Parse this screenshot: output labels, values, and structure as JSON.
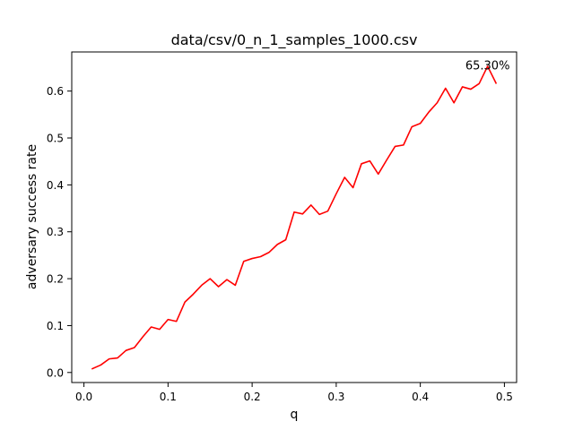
{
  "chart_data": {
    "type": "line",
    "title": "data/csv/0_n_1_samples_1000.csv",
    "xlabel": "q",
    "ylabel": "adversary success rate",
    "xlim": [
      -0.0145,
      0.5145
    ],
    "ylim": [
      -0.0214,
      0.6834
    ],
    "xticks": [
      0.0,
      0.1,
      0.2,
      0.3,
      0.4,
      0.5
    ],
    "xtick_labels": [
      "0.0",
      "0.1",
      "0.2",
      "0.3",
      "0.4",
      "0.5"
    ],
    "yticks": [
      0.0,
      0.1,
      0.2,
      0.3,
      0.4,
      0.5,
      0.6
    ],
    "ytick_labels": [
      "0.0",
      "0.1",
      "0.2",
      "0.3",
      "0.4",
      "0.5",
      "0.6"
    ],
    "grid": false,
    "series": [
      {
        "color": "#ff0000",
        "x": [
          0.01,
          0.02,
          0.03,
          0.04,
          0.05,
          0.06,
          0.07,
          0.08,
          0.09,
          0.1,
          0.11,
          0.12,
          0.13,
          0.14,
          0.15,
          0.16,
          0.17,
          0.18,
          0.19,
          0.2,
          0.21,
          0.22,
          0.23,
          0.24,
          0.25,
          0.26,
          0.27,
          0.28,
          0.29,
          0.3,
          0.31,
          0.32,
          0.33,
          0.34,
          0.35,
          0.36,
          0.37,
          0.38,
          0.39,
          0.4,
          0.41,
          0.42,
          0.43,
          0.44,
          0.45,
          0.46,
          0.47,
          0.48,
          0.49
        ],
        "y": [
          0.008,
          0.016,
          0.029,
          0.031,
          0.047,
          0.053,
          0.076,
          0.097,
          0.092,
          0.113,
          0.109,
          0.15,
          0.167,
          0.186,
          0.2,
          0.183,
          0.198,
          0.186,
          0.237,
          0.243,
          0.247,
          0.256,
          0.273,
          0.283,
          0.342,
          0.338,
          0.357,
          0.337,
          0.344,
          0.381,
          0.416,
          0.394,
          0.445,
          0.451,
          0.423,
          0.453,
          0.482,
          0.485,
          0.524,
          0.531,
          0.555,
          0.575,
          0.606,
          0.575,
          0.609,
          0.604,
          0.616,
          0.653,
          0.617
        ]
      }
    ],
    "annotations": [
      {
        "text": "65.30%",
        "x": 0.48,
        "y": 0.653
      }
    ]
  }
}
